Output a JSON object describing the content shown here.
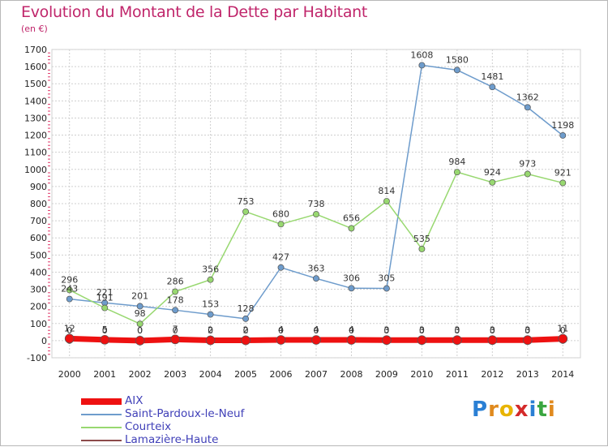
{
  "title": "Evolution du Montant de la Dette par Habitant",
  "subtitle": "(en €)",
  "logo": {
    "letters": [
      "P",
      "r",
      "o",
      "x",
      "i",
      "t",
      "i"
    ],
    "colors": [
      "#2a7fd4",
      "#e08a1e",
      "#e8b400",
      "#d42a2a",
      "#2a7fd4",
      "#3aa640",
      "#e08a1e"
    ]
  },
  "chart_data": {
    "type": "line",
    "x": [
      2000,
      2001,
      2002,
      2003,
      2004,
      2005,
      2006,
      2007,
      2008,
      2009,
      2010,
      2011,
      2012,
      2013,
      2014
    ],
    "ylim": [
      -100,
      1700
    ],
    "yticks": [
      -100,
      0,
      100,
      200,
      300,
      400,
      500,
      600,
      700,
      800,
      900,
      1000,
      1100,
      1200,
      1300,
      1400,
      1500,
      1600,
      1700
    ],
    "grid": true,
    "legend_position": "bottom-left",
    "series": [
      {
        "name": "AIX",
        "color": "#ee1111",
        "values": [
          12,
          5,
          0,
          7,
          2,
          2,
          4,
          4,
          4,
          3,
          3,
          3,
          3,
          3,
          11
        ],
        "width": 7,
        "labels": [
          "12",
          "5",
          "0",
          "7",
          "2",
          "2",
          "4",
          "4",
          "4",
          "3",
          "3",
          "3",
          "3",
          "3",
          "11"
        ]
      },
      {
        "name": "Saint-Pardoux-le-Neuf",
        "color": "#6e9ccc",
        "values": [
          243,
          221,
          201,
          178,
          153,
          128,
          427,
          363,
          306,
          305,
          1608,
          1580,
          1481,
          1362,
          1198
        ],
        "width": 1.5,
        "labels": [
          "243",
          "221",
          "201",
          "178",
          "153",
          "128",
          "427",
          "363",
          "306",
          "305",
          "1608",
          "1580",
          "1481",
          "1362",
          "1198"
        ]
      },
      {
        "name": "Courteix",
        "color": "#98d870",
        "values": [
          296,
          191,
          98,
          286,
          356,
          753,
          680,
          738,
          656,
          814,
          535,
          984,
          924,
          973,
          921
        ],
        "width": 1.5,
        "labels": [
          "296",
          "191",
          "98",
          "286",
          "356",
          "753",
          "680",
          "738",
          "656",
          "814",
          "535",
          "984",
          "924",
          "973",
          "921"
        ]
      },
      {
        "name": "Lamazière-Haute",
        "color": "#8c4a4a",
        "values": [
          0,
          0,
          0,
          0,
          0,
          0,
          0,
          0,
          0,
          0,
          0,
          0,
          0,
          0,
          0
        ],
        "width": 1.5,
        "labels": [
          "0",
          "0",
          "0",
          "0",
          "0",
          "0",
          "0",
          "0",
          "0",
          "0",
          "0",
          "0",
          "0",
          "0",
          "0"
        ]
      }
    ]
  }
}
